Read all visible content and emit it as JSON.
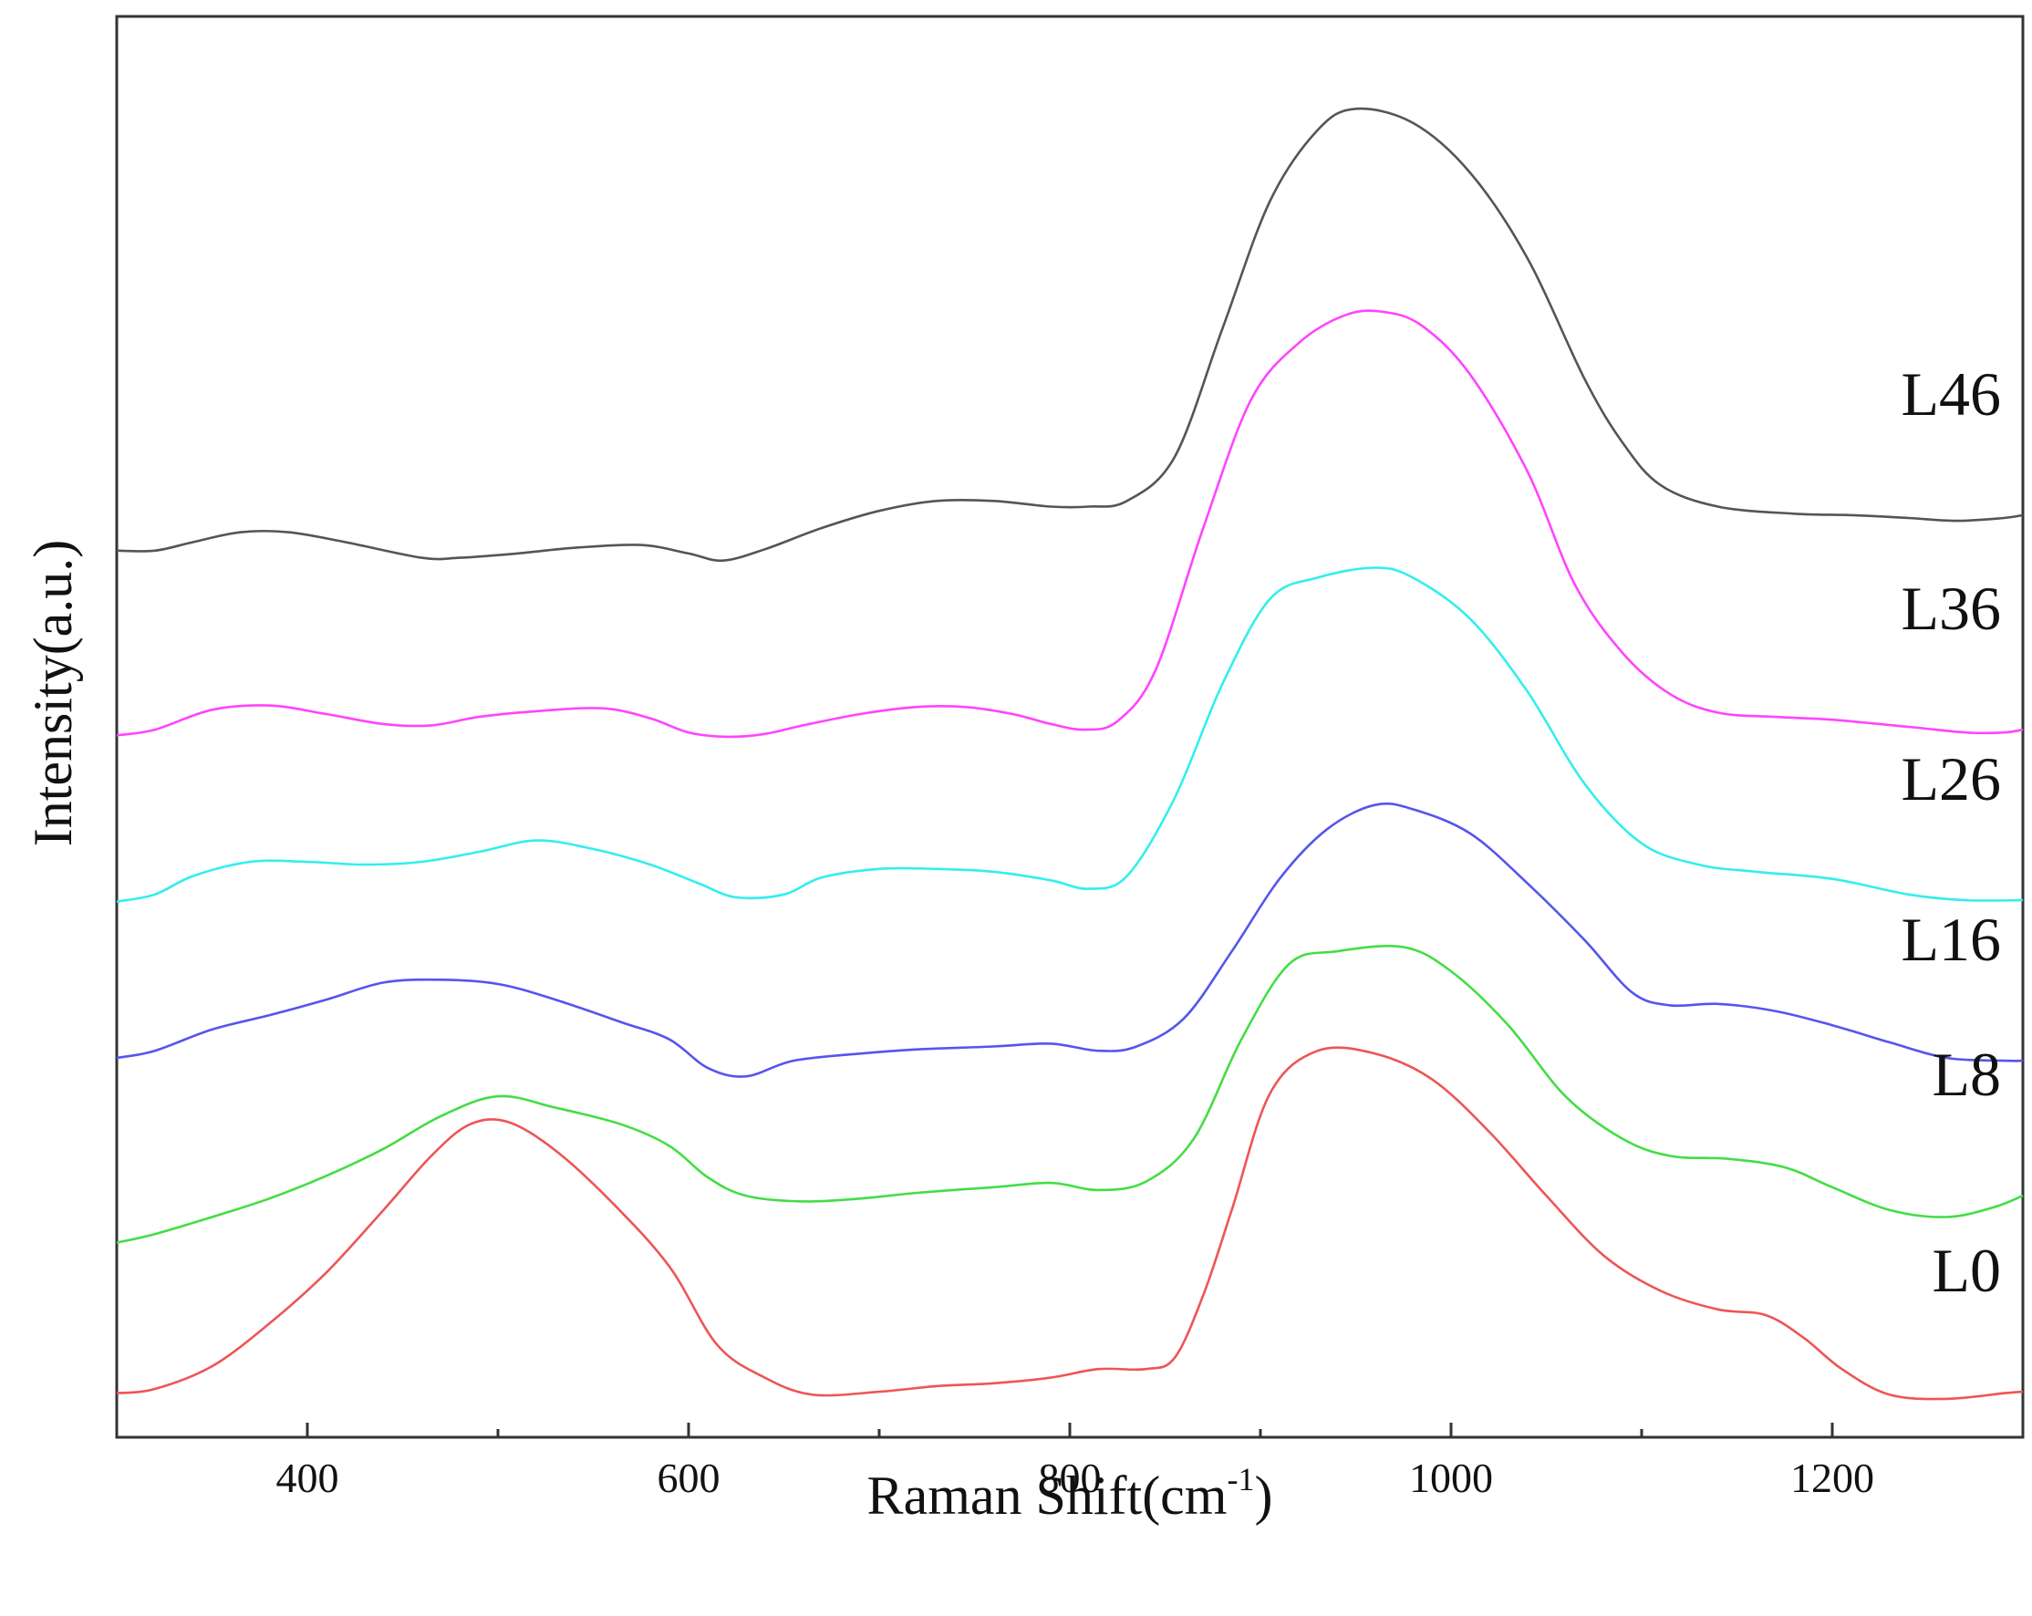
{
  "chart_data": {
    "type": "line",
    "title": "",
    "xlabel": "Raman Shift(cm",
    "xlabel_sup": "-1",
    "xlabel_close": ")",
    "ylabel": "Intensity(a.u.)",
    "xlim": [
      300,
      1300
    ],
    "ylim": [
      0,
      1000
    ],
    "xticks": [
      400,
      600,
      800,
      1000,
      1200
    ],
    "xticks_minor": [
      500,
      700,
      900,
      1100
    ],
    "y_ticks_visible": false,
    "grid": false,
    "legend": "inline-right",
    "series": [
      {
        "name": "L46",
        "label": "L46",
        "color": "#555555",
        "points": [
          [
            300,
            624
          ],
          [
            320,
            624
          ],
          [
            340,
            630
          ],
          [
            365,
            637
          ],
          [
            390,
            637
          ],
          [
            420,
            630
          ],
          [
            460,
            619
          ],
          [
            480,
            619
          ],
          [
            510,
            622
          ],
          [
            540,
            626
          ],
          [
            575,
            628
          ],
          [
            600,
            622
          ],
          [
            618,
            617
          ],
          [
            640,
            625
          ],
          [
            670,
            640
          ],
          [
            700,
            652
          ],
          [
            730,
            659
          ],
          [
            760,
            659
          ],
          [
            790,
            655
          ],
          [
            810,
            655
          ],
          [
            830,
            659
          ],
          [
            855,
            690
          ],
          [
            880,
            780
          ],
          [
            905,
            870
          ],
          [
            930,
            920
          ],
          [
            950,
            935
          ],
          [
            980,
            925
          ],
          [
            1010,
            890
          ],
          [
            1040,
            830
          ],
          [
            1070,
            745
          ],
          [
            1090,
            700
          ],
          [
            1110,
            670
          ],
          [
            1140,
            655
          ],
          [
            1180,
            650
          ],
          [
            1210,
            649
          ],
          [
            1240,
            647
          ],
          [
            1265,
            645
          ],
          [
            1290,
            647
          ],
          [
            1300,
            649
          ]
        ]
      },
      {
        "name": "L36",
        "label": "L36",
        "color": "#ff44ff",
        "points": [
          [
            300,
            494
          ],
          [
            320,
            498
          ],
          [
            350,
            512
          ],
          [
            380,
            515
          ],
          [
            410,
            509
          ],
          [
            440,
            502
          ],
          [
            465,
            501
          ],
          [
            490,
            507
          ],
          [
            520,
            511
          ],
          [
            555,
            513
          ],
          [
            580,
            506
          ],
          [
            600,
            496
          ],
          [
            620,
            493
          ],
          [
            640,
            495
          ],
          [
            660,
            501
          ],
          [
            690,
            509
          ],
          [
            720,
            514
          ],
          [
            745,
            514
          ],
          [
            770,
            509
          ],
          [
            790,
            502
          ],
          [
            808,
            498
          ],
          [
            825,
            504
          ],
          [
            845,
            540
          ],
          [
            870,
            640
          ],
          [
            895,
            730
          ],
          [
            920,
            770
          ],
          [
            945,
            790
          ],
          [
            965,
            792
          ],
          [
            985,
            782
          ],
          [
            1010,
            748
          ],
          [
            1040,
            680
          ],
          [
            1065,
            600
          ],
          [
            1090,
            552
          ],
          [
            1115,
            523
          ],
          [
            1140,
            510
          ],
          [
            1170,
            507
          ],
          [
            1200,
            505
          ],
          [
            1240,
            500
          ],
          [
            1270,
            496
          ],
          [
            1290,
            496
          ],
          [
            1300,
            498
          ]
        ]
      },
      {
        "name": "L26",
        "label": "L26",
        "color": "#33eeee",
        "points": [
          [
            300,
            377
          ],
          [
            320,
            382
          ],
          [
            340,
            395
          ],
          [
            370,
            405
          ],
          [
            400,
            405
          ],
          [
            430,
            403
          ],
          [
            460,
            405
          ],
          [
            490,
            412
          ],
          [
            520,
            420
          ],
          [
            550,
            414
          ],
          [
            580,
            403
          ],
          [
            605,
            390
          ],
          [
            625,
            380
          ],
          [
            650,
            382
          ],
          [
            670,
            394
          ],
          [
            700,
            400
          ],
          [
            730,
            400
          ],
          [
            760,
            398
          ],
          [
            790,
            392
          ],
          [
            810,
            386
          ],
          [
            830,
            395
          ],
          [
            855,
            450
          ],
          [
            880,
            530
          ],
          [
            905,
            590
          ],
          [
            930,
            605
          ],
          [
            960,
            612
          ],
          [
            980,
            605
          ],
          [
            1010,
            576
          ],
          [
            1040,
            525
          ],
          [
            1070,
            460
          ],
          [
            1100,
            418
          ],
          [
            1130,
            403
          ],
          [
            1160,
            398
          ],
          [
            1200,
            393
          ],
          [
            1240,
            382
          ],
          [
            1270,
            378
          ],
          [
            1300,
            378
          ]
        ]
      },
      {
        "name": "L16",
        "label": "L16",
        "color": "#5555ee",
        "points": [
          [
            300,
            267
          ],
          [
            320,
            272
          ],
          [
            350,
            287
          ],
          [
            380,
            297
          ],
          [
            410,
            308
          ],
          [
            440,
            320
          ],
          [
            470,
            322
          ],
          [
            500,
            319
          ],
          [
            530,
            308
          ],
          [
            565,
            292
          ],
          [
            590,
            280
          ],
          [
            610,
            260
          ],
          [
            630,
            254
          ],
          [
            655,
            265
          ],
          [
            690,
            270
          ],
          [
            720,
            273
          ],
          [
            760,
            275
          ],
          [
            790,
            277
          ],
          [
            815,
            272
          ],
          [
            835,
            275
          ],
          [
            860,
            295
          ],
          [
            885,
            342
          ],
          [
            910,
            393
          ],
          [
            935,
            428
          ],
          [
            960,
            445
          ],
          [
            980,
            442
          ],
          [
            1010,
            425
          ],
          [
            1040,
            390
          ],
          [
            1070,
            350
          ],
          [
            1095,
            313
          ],
          [
            1115,
            304
          ],
          [
            1140,
            305
          ],
          [
            1170,
            300
          ],
          [
            1200,
            290
          ],
          [
            1230,
            278
          ],
          [
            1260,
            267
          ],
          [
            1290,
            265
          ],
          [
            1300,
            265
          ]
        ]
      },
      {
        "name": "L8",
        "label": "L8",
        "color": "#44dd44",
        "points": [
          [
            300,
            137
          ],
          [
            320,
            143
          ],
          [
            350,
            155
          ],
          [
            380,
            168
          ],
          [
            410,
            184
          ],
          [
            440,
            203
          ],
          [
            470,
            226
          ],
          [
            500,
            240
          ],
          [
            530,
            232
          ],
          [
            565,
            220
          ],
          [
            590,
            205
          ],
          [
            610,
            183
          ],
          [
            630,
            170
          ],
          [
            660,
            166
          ],
          [
            690,
            168
          ],
          [
            720,
            172
          ],
          [
            760,
            176
          ],
          [
            790,
            179
          ],
          [
            815,
            174
          ],
          [
            840,
            180
          ],
          [
            865,
            210
          ],
          [
            890,
            280
          ],
          [
            915,
            333
          ],
          [
            940,
            342
          ],
          [
            975,
            345
          ],
          [
            1000,
            328
          ],
          [
            1030,
            290
          ],
          [
            1060,
            240
          ],
          [
            1090,
            210
          ],
          [
            1115,
            198
          ],
          [
            1145,
            196
          ],
          [
            1175,
            190
          ],
          [
            1200,
            176
          ],
          [
            1230,
            160
          ],
          [
            1260,
            155
          ],
          [
            1285,
            162
          ],
          [
            1300,
            170
          ]
        ]
      },
      {
        "name": "L0",
        "label": "L0",
        "color": "#ee5555",
        "points": [
          [
            300,
            31
          ],
          [
            320,
            34
          ],
          [
            350,
            50
          ],
          [
            380,
            80
          ],
          [
            410,
            116
          ],
          [
            440,
            160
          ],
          [
            465,
            198
          ],
          [
            485,
            220
          ],
          [
            505,
            222
          ],
          [
            530,
            202
          ],
          [
            560,
            165
          ],
          [
            590,
            120
          ],
          [
            615,
            65
          ],
          [
            640,
            42
          ],
          [
            665,
            30
          ],
          [
            700,
            32
          ],
          [
            730,
            36
          ],
          [
            760,
            38
          ],
          [
            790,
            42
          ],
          [
            815,
            48
          ],
          [
            840,
            48
          ],
          [
            855,
            56
          ],
          [
            870,
            100
          ],
          [
            885,
            160
          ],
          [
            905,
            242
          ],
          [
            930,
            272
          ],
          [
            960,
            270
          ],
          [
            990,
            252
          ],
          [
            1020,
            215
          ],
          [
            1050,
            170
          ],
          [
            1080,
            128
          ],
          [
            1110,
            103
          ],
          [
            1140,
            90
          ],
          [
            1165,
            86
          ],
          [
            1185,
            70
          ],
          [
            1205,
            48
          ],
          [
            1230,
            30
          ],
          [
            1260,
            27
          ],
          [
            1290,
            31
          ],
          [
            1300,
            32
          ]
        ]
      }
    ]
  }
}
